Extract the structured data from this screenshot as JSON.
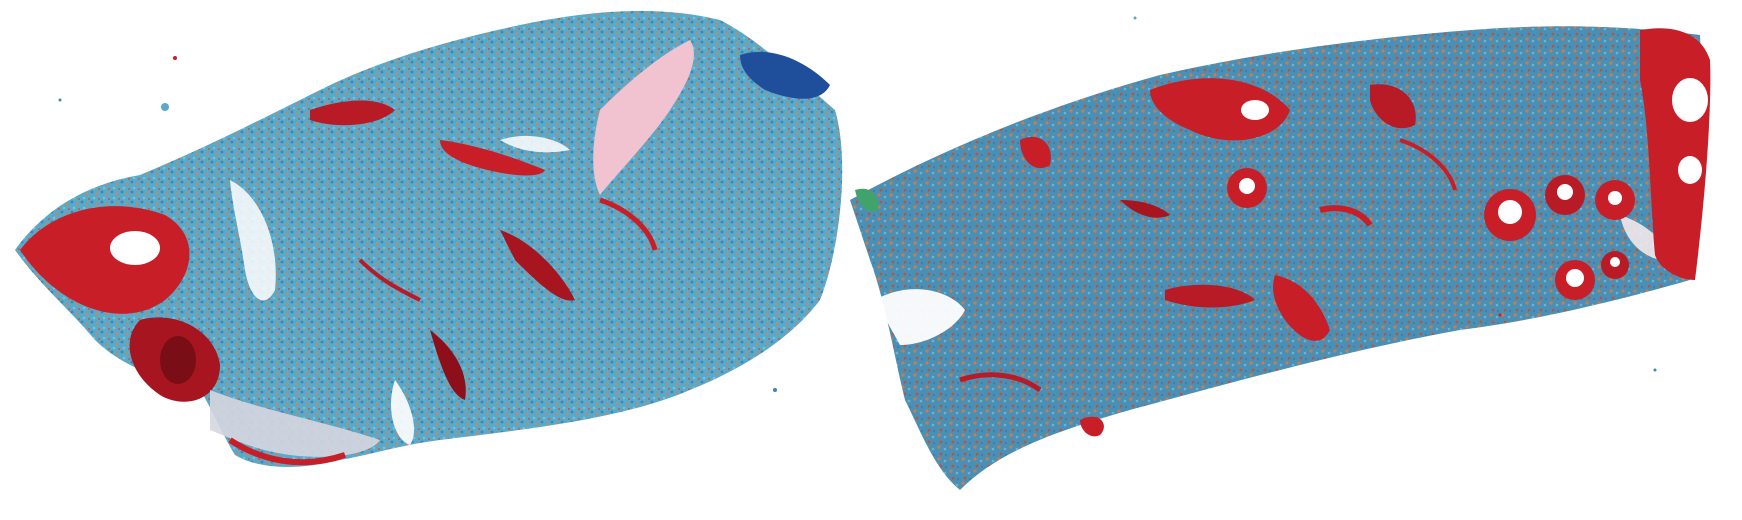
{
  "image": {
    "kind": "spatial transcriptomics cell map",
    "sections": [
      {
        "id": "left-section",
        "label": ""
      },
      {
        "id": "right-section",
        "label": ""
      }
    ],
    "colors": {
      "background": "#ffffff",
      "parenchyma_teal": "#5aa9c9",
      "parenchyma_blue": "#3e86b5",
      "parenchyma_orange": "#d9824b",
      "vessel_red": "#c81e28",
      "vessel_dark": "#8c0f19",
      "collagen_pink": "#f1c2cf",
      "dense_blue": "#1f4f9a",
      "green_cells": "#3fa36a"
    }
  }
}
